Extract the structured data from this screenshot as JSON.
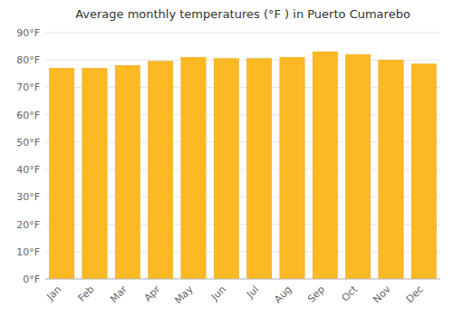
{
  "chart_data": {
    "type": "bar",
    "title": "Average monthly temperatures (°F ) in Puerto Cumarebo",
    "categories": [
      "Jan",
      "Feb",
      "Mar",
      "Apr",
      "May",
      "Jun",
      "Jul",
      "Aug",
      "Sep",
      "Oct",
      "Nov",
      "Dec"
    ],
    "values": [
      77,
      77,
      78,
      79.5,
      81,
      80.5,
      80.5,
      81,
      83,
      82,
      80,
      78.5
    ],
    "color": "#FDB924",
    "ylim": [
      0,
      90
    ],
    "yticks": [
      {
        "value": 0,
        "label": "0°F"
      },
      {
        "value": 10,
        "label": "10°F"
      },
      {
        "value": 20,
        "label": "20°F"
      },
      {
        "value": 30,
        "label": "30°F"
      },
      {
        "value": 40,
        "label": "40°F"
      },
      {
        "value": 50,
        "label": "50°F"
      },
      {
        "value": 60,
        "label": "60°F"
      },
      {
        "value": 70,
        "label": "70°F"
      },
      {
        "value": 80,
        "label": "80°F"
      },
      {
        "value": 90,
        "label": "90°F"
      }
    ],
    "grid": true
  }
}
